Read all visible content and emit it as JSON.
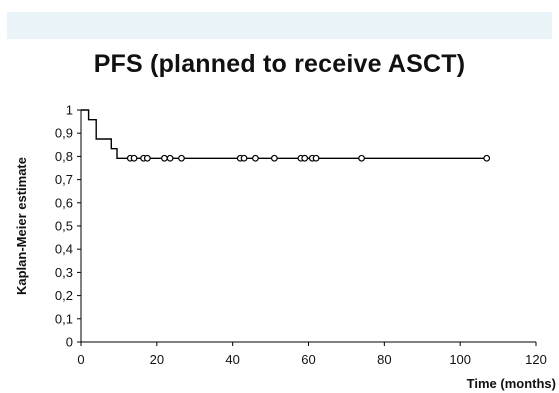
{
  "chart_data": {
    "type": "line",
    "title": "PFS (planned to receive ASCT)",
    "xlabel": "Time (months)",
    "ylabel": "Kaplan-Meier estimate",
    "xlim": [
      0,
      120
    ],
    "ylim": [
      0,
      1
    ],
    "x_ticks": [
      0,
      20,
      40,
      60,
      80,
      100,
      120
    ],
    "y_ticks": [
      {
        "value": 0,
        "label": "0"
      },
      {
        "value": 0.1,
        "label": "0,1"
      },
      {
        "value": 0.2,
        "label": "0,2"
      },
      {
        "value": 0.3,
        "label": "0,3"
      },
      {
        "value": 0.4,
        "label": "0,4"
      },
      {
        "value": 0.5,
        "label": "0,5"
      },
      {
        "value": 0.6,
        "label": "0,6"
      },
      {
        "value": 0.7,
        "label": "0,7"
      },
      {
        "value": 0.8,
        "label": "0,8"
      },
      {
        "value": 0.9,
        "label": "0,9"
      },
      {
        "value": 1,
        "label": "1"
      }
    ],
    "grid": false,
    "legend": "none",
    "line_color": "#000000",
    "series": [
      {
        "step": [
          [
            0,
            1
          ],
          [
            2,
            1
          ],
          [
            2,
            0.958
          ],
          [
            4,
            0.958
          ],
          [
            4,
            0.875
          ],
          [
            8,
            0.875
          ],
          [
            8,
            0.833
          ],
          [
            9.5,
            0.833
          ],
          [
            9.5,
            0.792
          ],
          [
            107,
            0.792
          ]
        ],
        "censored": [
          [
            13,
            0.792
          ],
          [
            14,
            0.792
          ],
          [
            16.5,
            0.792
          ],
          [
            17.5,
            0.792
          ],
          [
            22,
            0.792
          ],
          [
            23.5,
            0.792
          ],
          [
            26.5,
            0.792
          ],
          [
            42,
            0.792
          ],
          [
            43,
            0.792
          ],
          [
            46,
            0.792
          ],
          [
            51,
            0.792
          ],
          [
            58,
            0.792
          ],
          [
            59,
            0.792
          ],
          [
            61,
            0.792
          ],
          [
            62,
            0.792
          ],
          [
            74,
            0.792
          ],
          [
            107,
            0.792
          ]
        ]
      }
    ]
  }
}
